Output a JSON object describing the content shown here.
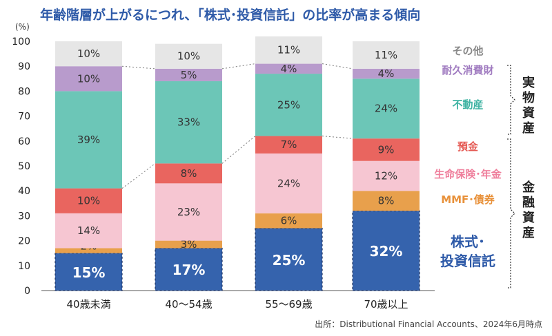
{
  "chart_data": {
    "type": "bar",
    "stacked": true,
    "title": "年齢階層が上がるにつれ、「株式･投資信託」の比率が高まる傾向",
    "unit_label": "(%)",
    "ylim": [
      0,
      100
    ],
    "yticks": [
      0,
      10,
      20,
      30,
      40,
      50,
      60,
      70,
      80,
      90,
      100
    ],
    "categories": [
      "40歳未満",
      "40～54歳",
      "55～69歳",
      "70歳以上"
    ],
    "series": [
      {
        "name": "株式･投資信託",
        "legend": [
          "株式･",
          "投資信託"
        ],
        "color": "#3563ad",
        "label_color": "#ffffff",
        "values": [
          15,
          17,
          25,
          32
        ]
      },
      {
        "name": "MMF･債券",
        "legend": [
          "MMF･債券"
        ],
        "color": "#e8a04c",
        "label_color": "#333333",
        "values": [
          2,
          3,
          6,
          8
        ]
      },
      {
        "name": "生命保険･年金",
        "legend": [
          "生命保険･年金"
        ],
        "color": "#f6c6d2",
        "label_color": "#333333",
        "values": [
          14,
          23,
          24,
          12
        ]
      },
      {
        "name": "預金",
        "legend": [
          "預金"
        ],
        "color": "#e9655f",
        "label_color": "#333333",
        "values": [
          10,
          8,
          7,
          9
        ]
      },
      {
        "name": "不動産",
        "legend": [
          "不動産"
        ],
        "color": "#6cc6b7",
        "label_color": "#333333",
        "values": [
          39,
          33,
          25,
          24
        ]
      },
      {
        "name": "耐久消費財",
        "legend": [
          "耐久消費財"
        ],
        "color": "#b89bcc",
        "label_color": "#333333",
        "values": [
          10,
          5,
          4,
          4
        ]
      },
      {
        "name": "その他",
        "legend": [
          "その他"
        ],
        "color": "#e6e6e6",
        "label_color": "#333333",
        "values": [
          10,
          10,
          11,
          11
        ]
      }
    ],
    "legend_colors": [
      "#2e5aa8",
      "#e8913a",
      "#ef7f9c",
      "#e55a54",
      "#3fb3a3",
      "#a07bc0",
      "#888888"
    ],
    "groups": [
      {
        "label": "実物資産",
        "members": [
          "不動産",
          "耐久消費財",
          "その他"
        ]
      },
      {
        "label": "金融資産",
        "members": [
          "株式･投資信託",
          "MMF･債券",
          "生命保険･年金",
          "預金"
        ]
      }
    ],
    "source": "出所：Distributional Financial Accounts、2024年6月時点"
  }
}
